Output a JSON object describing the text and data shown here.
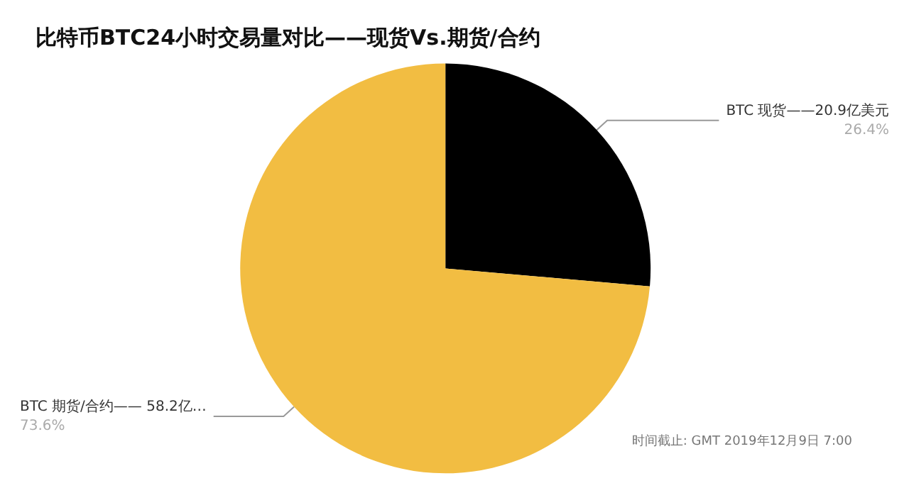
{
  "chart_data": {
    "type": "pie",
    "title": "比特币BTC24小时交易量对比——现货Vs.期货/合约",
    "categories": [
      "BTC 现货——20.9亿美元",
      "BTC 期货/合约—— 58.2亿…"
    ],
    "values": [
      26.4,
      73.6
    ],
    "value_labels": [
      "26.4%",
      "73.6%"
    ],
    "colors": [
      "#000000",
      "#f2bd42"
    ],
    "annotations": [
      "时间截止: GMT 2019年12月9日 7:00"
    ]
  }
}
